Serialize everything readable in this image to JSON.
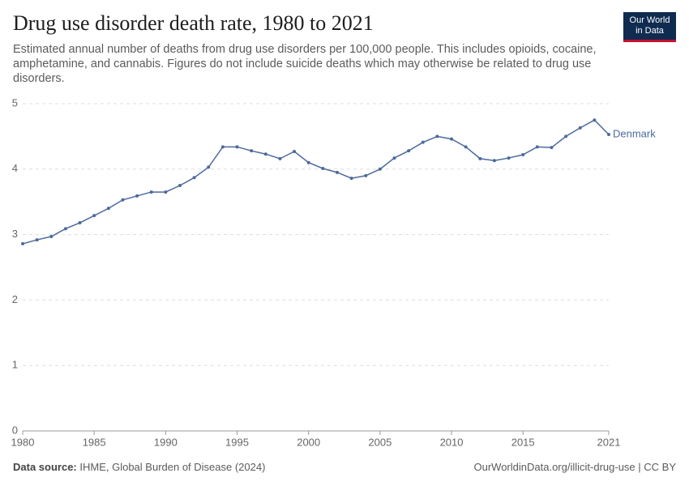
{
  "chart_data": {
    "type": "line",
    "title": "Drug use disorder death rate, 1980 to 2021",
    "subtitle": "Estimated annual number of deaths from drug use disorders per 100,000 people. This includes opioids, cocaine, amphetamine, and cannabis. Figures do not include suicide deaths which may otherwise be related to drug use disorders.",
    "x": [
      1980,
      1981,
      1982,
      1983,
      1984,
      1985,
      1986,
      1987,
      1988,
      1989,
      1990,
      1991,
      1992,
      1993,
      1994,
      1995,
      1996,
      1997,
      1998,
      1999,
      2000,
      2001,
      2002,
      2003,
      2004,
      2005,
      2006,
      2007,
      2008,
      2009,
      2010,
      2011,
      2012,
      2013,
      2014,
      2015,
      2016,
      2017,
      2018,
      2019,
      2020,
      2021
    ],
    "series": [
      {
        "name": "Denmark",
        "color": "#4c6a9c",
        "values": [
          2.86,
          2.92,
          2.97,
          3.09,
          3.18,
          3.29,
          3.4,
          3.53,
          3.59,
          3.65,
          3.65,
          3.75,
          3.87,
          4.03,
          4.34,
          4.34,
          4.28,
          4.23,
          4.16,
          4.27,
          4.1,
          4.01,
          3.95,
          3.86,
          3.9,
          4.0,
          4.17,
          4.28,
          4.41,
          4.5,
          4.46,
          4.34,
          4.16,
          4.13,
          4.17,
          4.22,
          4.34,
          4.33,
          4.5,
          4.63,
          4.75,
          4.53
        ]
      }
    ],
    "xlim": [
      1980,
      2021
    ],
    "xticks": [
      1980,
      1985,
      1990,
      1995,
      2000,
      2005,
      2010,
      2015,
      2021
    ],
    "ylim": [
      0,
      5
    ],
    "yticks": [
      0,
      1,
      2,
      3,
      4,
      5
    ],
    "grid": true,
    "source_label": "Data source:",
    "source": "IHME, Global Burden of Disease (2024)",
    "credit": "OurWorldinData.org/illicit-drug-use | CC BY"
  },
  "logo": {
    "line1": "Our World",
    "line2": "in Data"
  }
}
